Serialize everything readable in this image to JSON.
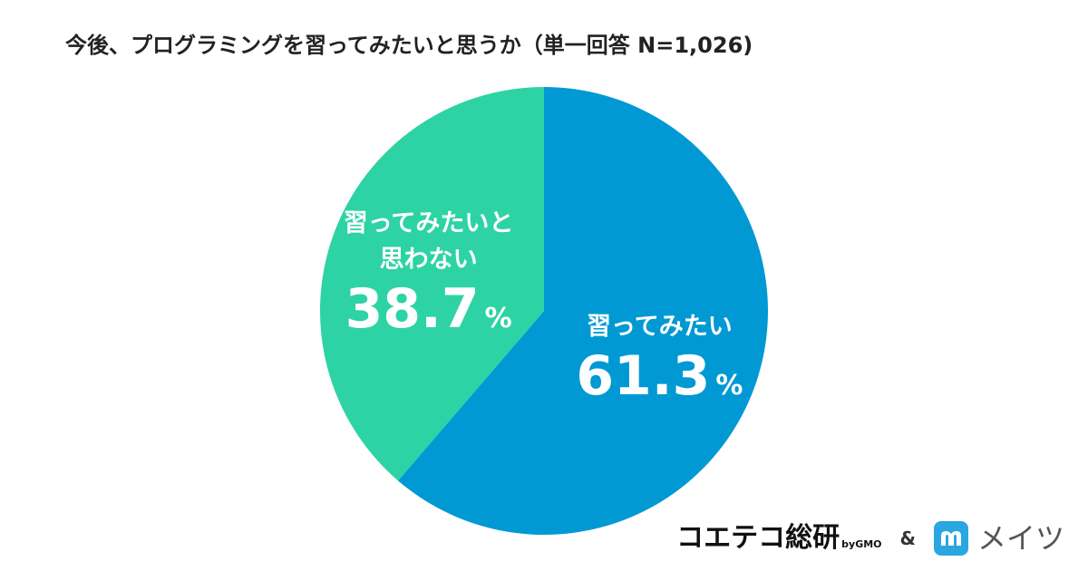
{
  "title": "今後、プログラミングを習ってみたいと思うか（単一回答 N=1,026)",
  "colors": {
    "want": "#0199d4",
    "dont_want": "#2dd3a4",
    "label_text": "#ffffff"
  },
  "chart_data": {
    "type": "pie",
    "title": "今後、プログラミングを習ってみたいと思うか（単一回答 N=1,026)",
    "start_angle_deg": 0,
    "direction": "clockwise",
    "slices": [
      {
        "label_lines": [
          "習ってみたい"
        ],
        "value": 61.3,
        "value_text": "61.3",
        "unit": "%",
        "color": "#0199d4"
      },
      {
        "label_lines": [
          "習ってみたいと",
          "思わない"
        ],
        "value": 38.7,
        "value_text": "38.7",
        "unit": "%",
        "color": "#2dd3a4"
      }
    ]
  },
  "footer": {
    "brand_main": "コエテコ総研",
    "brand_sub": "byGMO",
    "ampersand": "&",
    "partner_name": "メイツ",
    "partner_icon": "m-logo-icon"
  }
}
